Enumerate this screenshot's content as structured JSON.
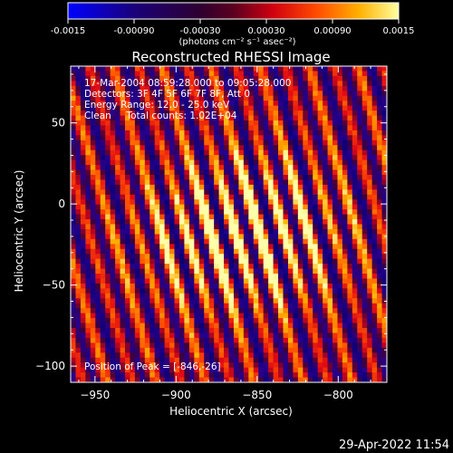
{
  "chart_data": {
    "type": "heatmap",
    "title": "Reconstructed RHESSI Image",
    "xlabel": "Heliocentric X (arcsec)",
    "ylabel": "Heliocentric Y (arcsec)",
    "xlim": [
      -965,
      -770
    ],
    "ylim": [
      -110,
      85
    ],
    "x_ticks": [
      -950,
      -900,
      -850,
      -800
    ],
    "y_ticks": [
      50,
      0,
      -50,
      -100
    ],
    "colorbar": {
      "range": [
        -0.0015,
        0.0015
      ],
      "ticks": [
        "-0.0015",
        "-0.00090",
        "-0.00030",
        "0.00030",
        "0.00090",
        "0.0015"
      ],
      "units_label": "(photons cm⁻² s⁻¹ asec⁻²)"
    },
    "annotations": [
      "17-Mar-2004 08:59:28.000 to 09:05:28.000",
      "Detectors: 3F 4F 5F 6F 7F 8F, Att 0",
      "Energy Range: 12.0 - 25.0 keV",
      "Clean     Total counts: 1.02E+04"
    ],
    "peak_label": "Position of Peak = [-846,-26]",
    "peak": [
      -846,
      -26
    ]
  },
  "footer": {
    "timestamp": "29-Apr-2022 11:54"
  }
}
